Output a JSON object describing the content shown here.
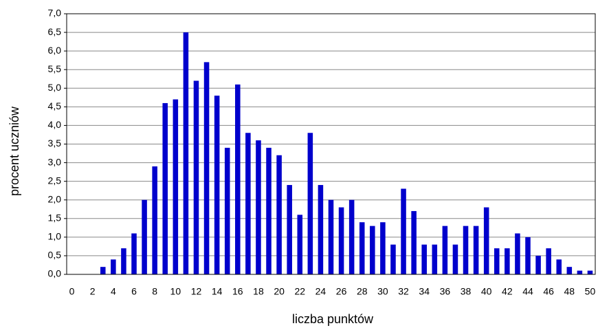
{
  "chart_data": {
    "type": "bar",
    "x_label": "liczba punktów",
    "y_label": "procent uczniów",
    "categories": [
      "0",
      null,
      "2",
      null,
      "4",
      null,
      "6",
      null,
      "8",
      null,
      "10",
      null,
      "12",
      null,
      "14",
      null,
      "16",
      null,
      "18",
      null,
      "20",
      null,
      "22",
      null,
      "24",
      null,
      "26",
      null,
      "28",
      null,
      "30",
      null,
      "32",
      null,
      "34",
      null,
      "36",
      null,
      "38",
      null,
      "40",
      null,
      "42",
      null,
      "44",
      null,
      "46",
      null,
      "48",
      null,
      "50"
    ],
    "values": [
      0,
      0,
      0,
      0.2,
      0.4,
      0.7,
      1.1,
      2.0,
      2.9,
      4.6,
      4.7,
      6.5,
      5.2,
      5.7,
      4.8,
      3.4,
      5.1,
      3.8,
      3.6,
      3.4,
      3.2,
      2.4,
      1.6,
      3.8,
      2.4,
      2.0,
      1.8,
      2.0,
      1.4,
      1.3,
      1.4,
      0.8,
      2.3,
      1.7,
      0.8,
      0.8,
      1.3,
      0.8,
      1.3,
      1.3,
      1.8,
      0.7,
      0.7,
      1.1,
      1.0,
      0.5,
      0.7,
      0.4,
      0.2,
      0.1,
      0.1
    ],
    "color": "#0000cc",
    "ylim": [
      0,
      7
    ],
    "yticks": [
      {
        "value": 0,
        "label": "0,0"
      },
      {
        "value": 0.5,
        "label": "0,5"
      },
      {
        "value": 1,
        "label": "1,0"
      },
      {
        "value": 1.5,
        "label": "1,5"
      },
      {
        "value": 2,
        "label": "2,0"
      },
      {
        "value": 2.5,
        "label": "2,5"
      },
      {
        "value": 3,
        "label": "3,0"
      },
      {
        "value": 3.5,
        "label": "3,5"
      },
      {
        "value": 4,
        "label": "4,0"
      },
      {
        "value": 4.5,
        "label": "4,5"
      },
      {
        "value": 5,
        "label": "5,0"
      },
      {
        "value": 5.5,
        "label": "5,5"
      },
      {
        "value": 6,
        "label": "6,0"
      },
      {
        "value": 6.5,
        "label": "6,5"
      },
      {
        "value": 7,
        "label": "7,0"
      }
    ],
    "grid": true
  }
}
